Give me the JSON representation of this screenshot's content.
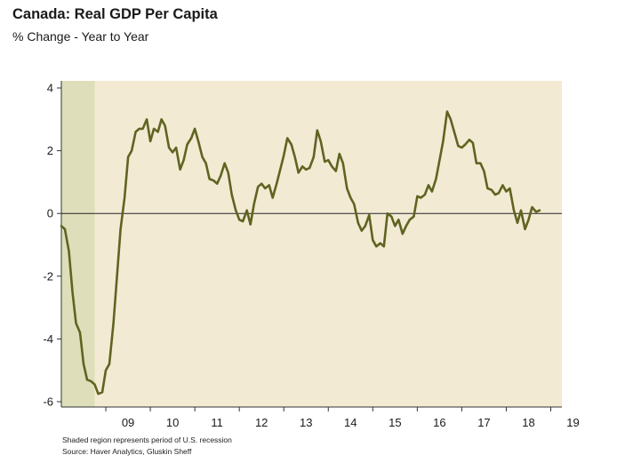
{
  "chart_data": {
    "type": "line",
    "title": "Canada: Real GDP Per Capita",
    "subtitle": "% Change - Year to Year",
    "xlabel": "",
    "ylabel": "",
    "xlim": [
      2008.0,
      2019.25
    ],
    "ylim": [
      -6,
      4
    ],
    "yticks": [
      -6,
      -4,
      -2,
      0,
      2,
      4
    ],
    "xticks": [
      {
        "label": "09",
        "value": 2009.0
      },
      {
        "label": "10",
        "value": 2010.0
      },
      {
        "label": "11",
        "value": 2011.0
      },
      {
        "label": "12",
        "value": 2012.0
      },
      {
        "label": "13",
        "value": 2013.0
      },
      {
        "label": "14",
        "value": 2014.0
      },
      {
        "label": "15",
        "value": 2015.0
      },
      {
        "label": "16",
        "value": 2016.0
      },
      {
        "label": "17",
        "value": 2017.0
      },
      {
        "label": "18",
        "value": 2018.0
      },
      {
        "label": "19",
        "value": 2019.0
      }
    ],
    "recession": {
      "start": 2008.0,
      "end": 2008.75
    },
    "grid": false,
    "zero_line": true,
    "colors": {
      "plot_background": "#f3ead4",
      "recession_shade": "#dedfba",
      "line": "#5f6420",
      "axis": "#333333"
    },
    "series": [
      {
        "values": [
          [
            2008.0,
            -0.4
          ],
          [
            2008.08,
            -0.5
          ],
          [
            2008.17,
            -1.2
          ],
          [
            2008.25,
            -2.5
          ],
          [
            2008.33,
            -3.5
          ],
          [
            2008.42,
            -3.8
          ],
          [
            2008.5,
            -4.8
          ],
          [
            2008.58,
            -5.3
          ],
          [
            2008.67,
            -5.35
          ],
          [
            2008.75,
            -5.45
          ],
          [
            2008.83,
            -5.75
          ],
          [
            2008.92,
            -5.7
          ],
          [
            2009.0,
            -5.0
          ],
          [
            2009.08,
            -4.8
          ],
          [
            2009.17,
            -3.5
          ],
          [
            2009.25,
            -2.0
          ],
          [
            2009.33,
            -0.5
          ],
          [
            2009.42,
            0.5
          ],
          [
            2009.5,
            1.8
          ],
          [
            2009.58,
            2.0
          ],
          [
            2009.67,
            2.6
          ],
          [
            2009.75,
            2.7
          ],
          [
            2009.83,
            2.7
          ],
          [
            2009.92,
            3.0
          ],
          [
            2010.0,
            2.3
          ],
          [
            2010.08,
            2.7
          ],
          [
            2010.17,
            2.6
          ],
          [
            2010.25,
            3.0
          ],
          [
            2010.33,
            2.8
          ],
          [
            2010.42,
            2.1
          ],
          [
            2010.5,
            1.95
          ],
          [
            2010.58,
            2.1
          ],
          [
            2010.67,
            1.4
          ],
          [
            2010.75,
            1.7
          ],
          [
            2010.83,
            2.2
          ],
          [
            2010.92,
            2.4
          ],
          [
            2011.0,
            2.7
          ],
          [
            2011.08,
            2.3
          ],
          [
            2011.17,
            1.8
          ],
          [
            2011.25,
            1.6
          ],
          [
            2011.33,
            1.1
          ],
          [
            2011.42,
            1.05
          ],
          [
            2011.5,
            0.95
          ],
          [
            2011.58,
            1.2
          ],
          [
            2011.67,
            1.6
          ],
          [
            2011.75,
            1.3
          ],
          [
            2011.83,
            0.6
          ],
          [
            2011.92,
            0.1
          ],
          [
            2012.0,
            -0.2
          ],
          [
            2012.08,
            -0.25
          ],
          [
            2012.17,
            0.1
          ],
          [
            2012.25,
            -0.35
          ],
          [
            2012.33,
            0.3
          ],
          [
            2012.42,
            0.85
          ],
          [
            2012.5,
            0.95
          ],
          [
            2012.58,
            0.8
          ],
          [
            2012.67,
            0.9
          ],
          [
            2012.75,
            0.5
          ],
          [
            2012.83,
            0.9
          ],
          [
            2012.92,
            1.4
          ],
          [
            2013.0,
            1.85
          ],
          [
            2013.08,
            2.4
          ],
          [
            2013.17,
            2.2
          ],
          [
            2013.25,
            1.8
          ],
          [
            2013.33,
            1.3
          ],
          [
            2013.42,
            1.5
          ],
          [
            2013.5,
            1.4
          ],
          [
            2013.58,
            1.45
          ],
          [
            2013.67,
            1.8
          ],
          [
            2013.75,
            2.65
          ],
          [
            2013.83,
            2.3
          ],
          [
            2013.92,
            1.65
          ],
          [
            2014.0,
            1.7
          ],
          [
            2014.08,
            1.5
          ],
          [
            2014.17,
            1.35
          ],
          [
            2014.25,
            1.9
          ],
          [
            2014.33,
            1.6
          ],
          [
            2014.42,
            0.8
          ],
          [
            2014.5,
            0.5
          ],
          [
            2014.58,
            0.3
          ],
          [
            2014.67,
            -0.3
          ],
          [
            2014.75,
            -0.55
          ],
          [
            2014.83,
            -0.4
          ],
          [
            2014.92,
            -0.05
          ],
          [
            2015.0,
            -0.85
          ],
          [
            2015.08,
            -1.05
          ],
          [
            2015.17,
            -0.95
          ],
          [
            2015.25,
            -1.05
          ],
          [
            2015.33,
            0.0
          ],
          [
            2015.42,
            -0.1
          ],
          [
            2015.5,
            -0.4
          ],
          [
            2015.58,
            -0.2
          ],
          [
            2015.67,
            -0.65
          ],
          [
            2015.75,
            -0.4
          ],
          [
            2015.83,
            -0.2
          ],
          [
            2015.92,
            -0.1
          ],
          [
            2016.0,
            0.55
          ],
          [
            2016.08,
            0.5
          ],
          [
            2016.17,
            0.6
          ],
          [
            2016.25,
            0.9
          ],
          [
            2016.33,
            0.7
          ],
          [
            2016.42,
            1.1
          ],
          [
            2016.5,
            1.7
          ],
          [
            2016.58,
            2.3
          ],
          [
            2016.67,
            3.25
          ],
          [
            2016.75,
            3.0
          ],
          [
            2016.83,
            2.6
          ],
          [
            2016.92,
            2.15
          ],
          [
            2017.0,
            2.1
          ],
          [
            2017.08,
            2.2
          ],
          [
            2017.17,
            2.35
          ],
          [
            2017.25,
            2.25
          ],
          [
            2017.33,
            1.6
          ],
          [
            2017.42,
            1.6
          ],
          [
            2017.5,
            1.35
          ],
          [
            2017.58,
            0.8
          ],
          [
            2017.67,
            0.75
          ],
          [
            2017.75,
            0.6
          ],
          [
            2017.83,
            0.65
          ],
          [
            2017.92,
            0.9
          ],
          [
            2018.0,
            0.7
          ],
          [
            2018.08,
            0.8
          ],
          [
            2018.17,
            0.1
          ],
          [
            2018.25,
            -0.3
          ],
          [
            2018.33,
            0.1
          ],
          [
            2018.42,
            -0.5
          ],
          [
            2018.5,
            -0.2
          ],
          [
            2018.58,
            0.2
          ],
          [
            2018.67,
            0.05
          ],
          [
            2018.75,
            0.1
          ]
        ]
      }
    ]
  },
  "footnotes": {
    "recession_note": "Shaded region represents period of U.S. recession",
    "source": "Source: Haver Analytics, Gluskin Sheff"
  }
}
